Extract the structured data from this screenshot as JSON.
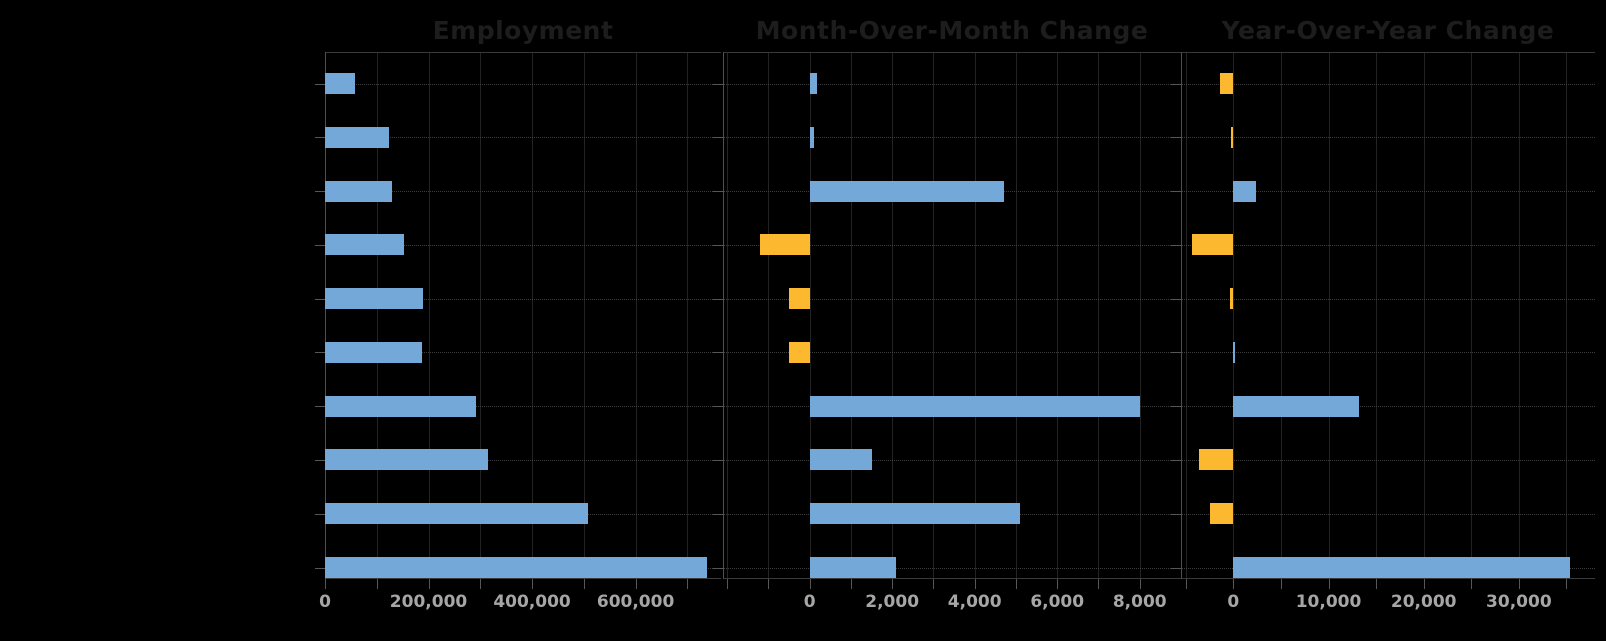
{
  "page": {
    "background_color": "#000000",
    "y_axis_labels_visible": false,
    "grid_color_vertical": "#232323",
    "grid_color_horizontal": "#3e3e3e",
    "spine_color": "#3a3a3a",
    "tick_color": "#565656",
    "title_color": "#1d1d1d",
    "tick_label_color": "#a6a6a6",
    "positive_bar_color": "#74A8D8",
    "negative_bar_color": "#FCB930"
  },
  "chart_data": [
    {
      "type": "bar",
      "orientation": "horizontal",
      "title": "Employment",
      "rows": 10,
      "values": [
        57000,
        123000,
        130000,
        153000,
        190000,
        187000,
        292000,
        314000,
        508000,
        737000
      ],
      "xlim": [
        0,
        765000
      ],
      "grid_step": 100000,
      "tick_values": [
        0,
        200000,
        400000,
        600000
      ],
      "tick_labels": [
        "0",
        "200,000",
        "400,000",
        "600,000"
      ],
      "legend": "none",
      "grid": "on",
      "note": "category labels not visible (black on black)"
    },
    {
      "type": "bar",
      "orientation": "horizontal",
      "title": "Month-Over-Month Change",
      "rows": 10,
      "values": [
        170,
        100,
        4700,
        -1200,
        -500,
        -500,
        8000,
        1500,
        5100,
        2100
      ],
      "xlim": [
        -2100,
        9000
      ],
      "grid_step": 1000,
      "tick_values": [
        0,
        2000,
        4000,
        6000,
        8000
      ],
      "tick_labels": [
        "0",
        "2,000",
        "4,000",
        "6,000",
        "8,000"
      ],
      "legend": "none",
      "grid": "on",
      "note": "positive bars blue, negative bars yellow"
    },
    {
      "type": "bar",
      "orientation": "horizontal",
      "title": "Year-Over-Year Change",
      "rows": 10,
      "values": [
        -1400,
        -200,
        2400,
        -4300,
        -350,
        200,
        13200,
        -3600,
        -2500,
        35400
      ],
      "xlim": [
        -5500,
        38000
      ],
      "grid_step": 5000,
      "tick_values": [
        0,
        10000,
        20000,
        30000
      ],
      "tick_labels": [
        "0",
        "10,000",
        "20,000",
        "30,000"
      ],
      "legend": "none",
      "grid": "on",
      "note": "positive bars blue, negative bars yellow"
    }
  ]
}
